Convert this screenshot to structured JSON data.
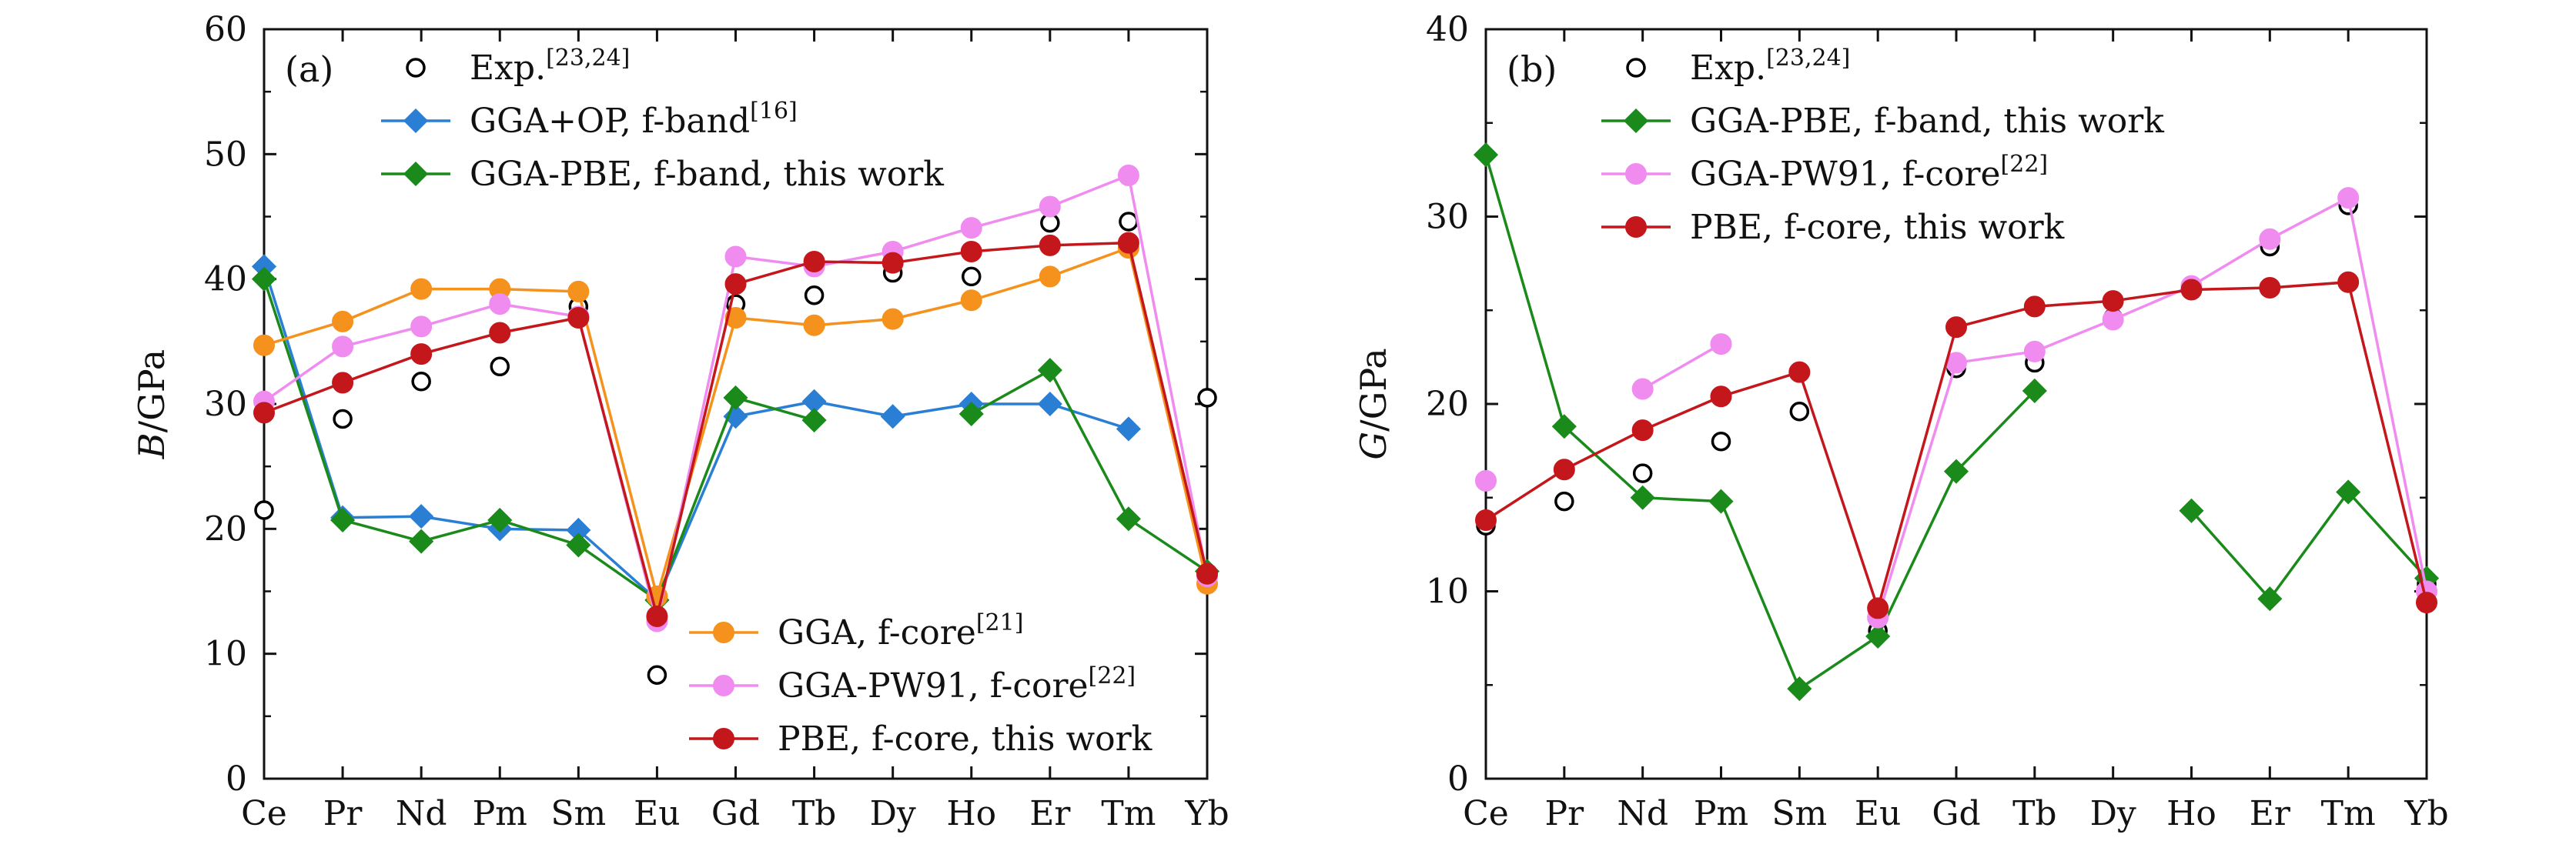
{
  "chart_data": [
    {
      "type": "line",
      "panel": "(a)",
      "ylabel_var": "B",
      "ylabel_unit": "/GPa",
      "categories": [
        "Ce",
        "Pr",
        "Nd",
        "Pm",
        "Sm",
        "Eu",
        "Gd",
        "Tb",
        "Dy",
        "Ho",
        "Er",
        "Tm",
        "Yb"
      ],
      "ylim": [
        0,
        60
      ],
      "yticks": [
        0,
        10,
        20,
        30,
        40,
        50,
        60
      ],
      "grid": false,
      "series": [
        {
          "key": "exp",
          "name": "Exp.",
          "sup": "[23,24]",
          "marker": "open-circle",
          "line": false,
          "color": "#000000",
          "values": [
            21.5,
            28.8,
            31.8,
            33.0,
            37.8,
            8.3,
            38.0,
            38.7,
            40.5,
            40.2,
            44.5,
            44.6,
            30.5
          ]
        },
        {
          "key": "opband",
          "name": "GGA+OP, f-band",
          "sup": "[16]",
          "marker": "diamond",
          "line": true,
          "color": "#2a7fd4",
          "values": [
            41.0,
            20.9,
            21.0,
            20.0,
            19.9,
            14.3,
            29.0,
            30.2,
            29.0,
            30.0,
            30.0,
            28.0,
            null
          ]
        },
        {
          "key": "pbeband",
          "name": "GGA-PBE, f-band, this work",
          "sup": "",
          "marker": "diamond",
          "line": true,
          "color": "#1a8a1a",
          "values": [
            40.0,
            20.7,
            19.0,
            20.7,
            18.7,
            14.3,
            30.5,
            28.7,
            null,
            29.2,
            32.7,
            20.8,
            16.6
          ]
        },
        {
          "key": "ggacore",
          "name": "GGA, f-core",
          "sup": "[21]",
          "marker": "circle",
          "line": true,
          "color": "#f5921e",
          "values": [
            34.7,
            36.6,
            39.2,
            39.2,
            39.0,
            14.6,
            36.9,
            36.3,
            36.8,
            38.3,
            40.2,
            42.5,
            15.6
          ]
        },
        {
          "key": "pw91core",
          "name": "GGA-PW91, f-core",
          "sup": "[22]",
          "marker": "circle",
          "line": true,
          "color": "#f08cf0",
          "values": [
            30.2,
            34.6,
            36.2,
            38.0,
            37.0,
            12.6,
            41.8,
            41.0,
            42.2,
            44.1,
            45.8,
            48.3,
            16.2
          ]
        },
        {
          "key": "pbecore",
          "name": "PBE, f-core, this work",
          "sup": "",
          "marker": "circle",
          "line": true,
          "color": "#c4171c",
          "values": [
            29.3,
            31.7,
            34.0,
            35.7,
            36.9,
            13.0,
            39.6,
            41.4,
            41.3,
            42.2,
            42.7,
            42.9,
            16.4
          ]
        }
      ],
      "legend_top": [
        "exp",
        "opband",
        "pbeband"
      ],
      "legend_bottom": [
        "ggacore",
        "pw91core",
        "pbecore"
      ]
    },
    {
      "type": "line",
      "panel": "(b)",
      "ylabel_var": "G",
      "ylabel_unit": "/GPa",
      "categories": [
        "Ce",
        "Pr",
        "Nd",
        "Pm",
        "Sm",
        "Eu",
        "Gd",
        "Tb",
        "Dy",
        "Ho",
        "Er",
        "Tm",
        "Yb"
      ],
      "ylim": [
        0,
        40
      ],
      "yticks": [
        0,
        10,
        20,
        30,
        40
      ],
      "grid": false,
      "series": [
        {
          "key": "exp",
          "name": "Exp.",
          "sup": "[23,24]",
          "marker": "open-circle",
          "line": false,
          "color": "#000000",
          "values": [
            13.5,
            14.8,
            16.3,
            18.0,
            19.6,
            7.9,
            21.9,
            22.2,
            24.6,
            26.2,
            28.4,
            30.6,
            10.4
          ]
        },
        {
          "key": "pbeband",
          "name": "GGA-PBE, f-band, this work",
          "sup": "",
          "marker": "diamond",
          "line": true,
          "color": "#1a8a1a",
          "values": [
            33.3,
            18.8,
            15.0,
            14.8,
            4.8,
            7.6,
            16.4,
            20.7,
            null,
            14.3,
            9.6,
            15.3,
            10.7
          ]
        },
        {
          "key": "pw91core",
          "name": "GGA-PW91, f-core",
          "sup": "[22]",
          "marker": "circle",
          "line": true,
          "color": "#f08cf0",
          "values": [
            15.9,
            null,
            20.8,
            23.2,
            null,
            8.6,
            22.2,
            22.8,
            24.5,
            26.3,
            28.8,
            31.0,
            10.0
          ]
        },
        {
          "key": "pbecore",
          "name": "PBE, f-core, this work",
          "sup": "",
          "marker": "circle",
          "line": true,
          "color": "#c4171c",
          "values": [
            13.8,
            16.5,
            18.6,
            20.4,
            21.7,
            9.1,
            24.1,
            25.2,
            25.5,
            26.1,
            26.2,
            26.5,
            9.4
          ]
        }
      ],
      "legend_top": [
        "exp",
        "pbeband",
        "pw91core",
        "pbecore"
      ],
      "legend_bottom": []
    }
  ]
}
